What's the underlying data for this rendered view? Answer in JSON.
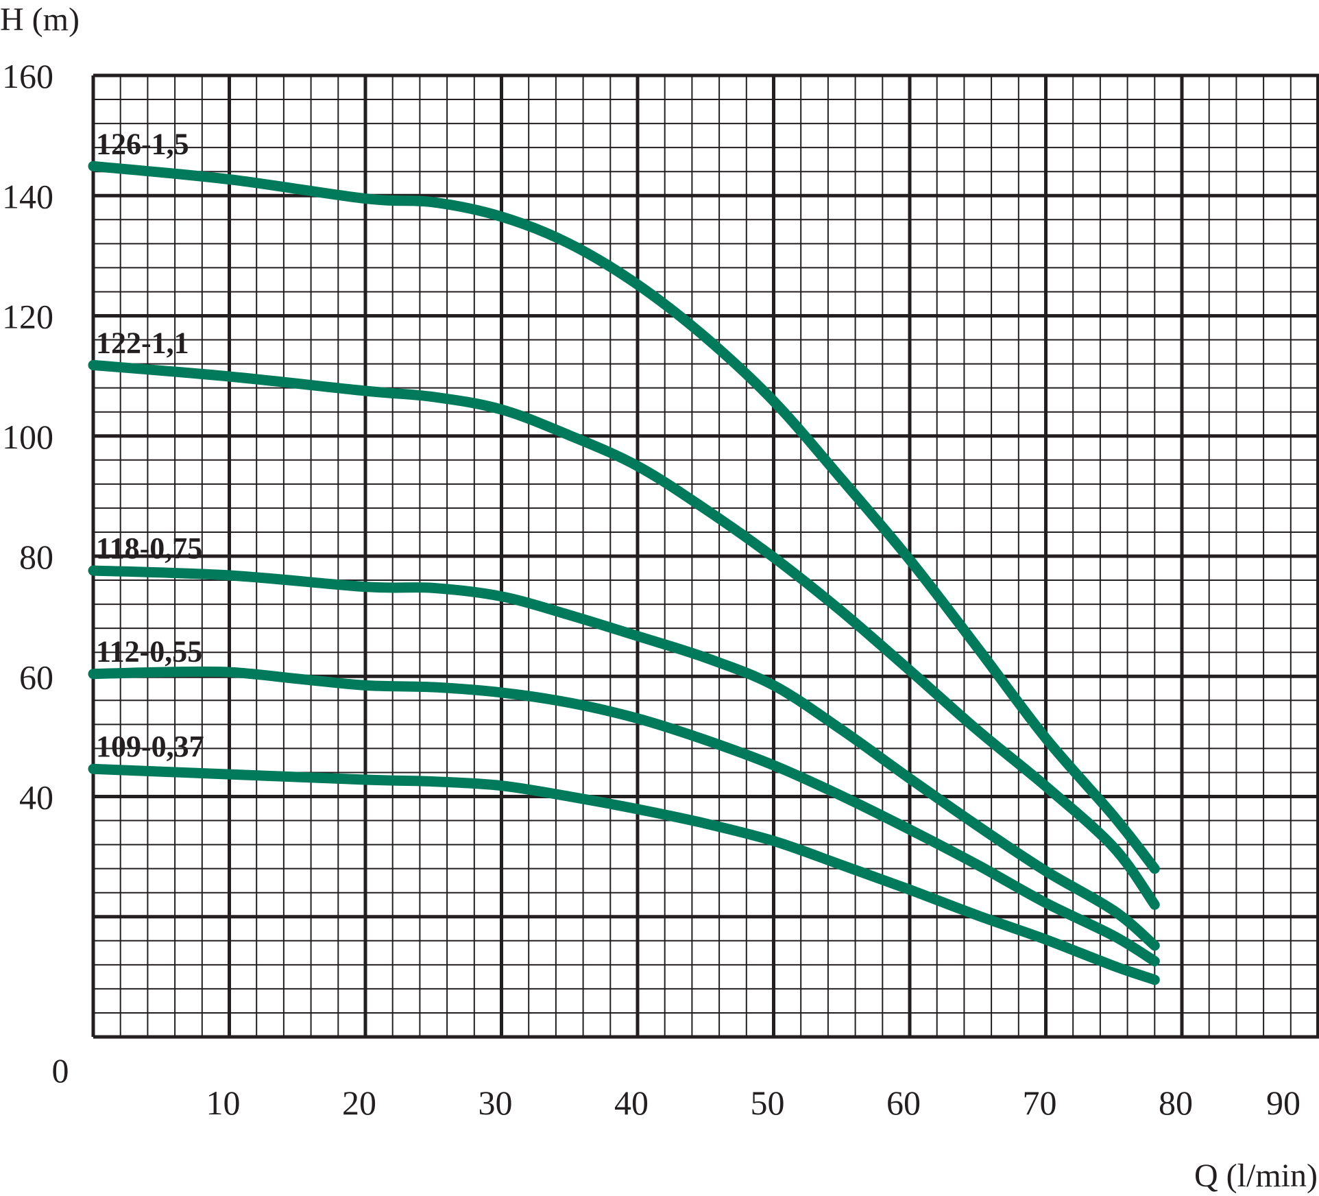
{
  "chart_data": {
    "type": "line",
    "title": "",
    "xlabel": "Q (l/min)",
    "ylabel": "H (m)",
    "xlim": [
      0,
      90
    ],
    "ylim": [
      0,
      160
    ],
    "x_ticks": [
      {
        "value": 10,
        "label": "10"
      },
      {
        "value": 20,
        "label": "20"
      },
      {
        "value": 30,
        "label": "30"
      },
      {
        "value": 40,
        "label": "40"
      },
      {
        "value": 50,
        "label": "50"
      },
      {
        "value": 60,
        "label": "60"
      },
      {
        "value": 70,
        "label": "70"
      },
      {
        "value": 80,
        "label": "80"
      },
      {
        "value": 90,
        "label": "90"
      }
    ],
    "y_ticks": [
      {
        "value": 40,
        "label": "40"
      },
      {
        "value": 60,
        "label": "60"
      },
      {
        "value": 80,
        "label": "80"
      },
      {
        "value": 100,
        "label": "100"
      },
      {
        "value": 120,
        "label": "120"
      },
      {
        "value": 140,
        "label": "140"
      },
      {
        "value": 160,
        "label": "160"
      }
    ],
    "origin_label": "0",
    "grid": true,
    "legend": "inline labels at left",
    "line_color": "#007a5a",
    "series": [
      {
        "name": "126-1,5",
        "points": [
          [
            0,
            144.9
          ],
          [
            10,
            142.7
          ],
          [
            20,
            139.5
          ],
          [
            25,
            138.9
          ],
          [
            30,
            136.5
          ],
          [
            35,
            132
          ],
          [
            40,
            125.2
          ],
          [
            45,
            116.4
          ],
          [
            50,
            105.8
          ],
          [
            55,
            92.8
          ],
          [
            60,
            79.4
          ],
          [
            65,
            64.7
          ],
          [
            70,
            49.7
          ],
          [
            75,
            36.7
          ],
          [
            78,
            28
          ]
        ]
      },
      {
        "name": "122-1,1",
        "points": [
          [
            0,
            111.8
          ],
          [
            10,
            109.9
          ],
          [
            20,
            107.5
          ],
          [
            25,
            106.5
          ],
          [
            30,
            104.4
          ],
          [
            35,
            100.1
          ],
          [
            40,
            95
          ],
          [
            45,
            87.8
          ],
          [
            50,
            79.8
          ],
          [
            55,
            70.8
          ],
          [
            60,
            61
          ],
          [
            65,
            51
          ],
          [
            70,
            41.7
          ],
          [
            75,
            31.5
          ],
          [
            78,
            22
          ]
        ]
      },
      {
        "name": "118-0,75",
        "points": [
          [
            0,
            77.6
          ],
          [
            10,
            76.8
          ],
          [
            20,
            74.9
          ],
          [
            25,
            74.7
          ],
          [
            30,
            73.3
          ],
          [
            35,
            70.2
          ],
          [
            40,
            66.7
          ],
          [
            45,
            63.1
          ],
          [
            50,
            58.5
          ],
          [
            55,
            51.1
          ],
          [
            60,
            43
          ],
          [
            65,
            35.1
          ],
          [
            70,
            27.6
          ],
          [
            75,
            21
          ],
          [
            78,
            15.2
          ]
        ]
      },
      {
        "name": "112-0,55",
        "points": [
          [
            0,
            60.4
          ],
          [
            5,
            60.7
          ],
          [
            10,
            60.7
          ],
          [
            15,
            59.6
          ],
          [
            20,
            58.5
          ],
          [
            25,
            58.2
          ],
          [
            30,
            57.3
          ],
          [
            35,
            55.6
          ],
          [
            40,
            53
          ],
          [
            45,
            49.4
          ],
          [
            50,
            45.2
          ],
          [
            55,
            40.1
          ],
          [
            60,
            34.5
          ],
          [
            65,
            28.6
          ],
          [
            70,
            22.3
          ],
          [
            75,
            16.8
          ],
          [
            78,
            12.6
          ]
        ]
      },
      {
        "name": "109-0,37",
        "points": [
          [
            0,
            44.6
          ],
          [
            10,
            43.7
          ],
          [
            20,
            42.8
          ],
          [
            25,
            42.5
          ],
          [
            30,
            41.8
          ],
          [
            35,
            40
          ],
          [
            40,
            37.9
          ],
          [
            45,
            35.5
          ],
          [
            50,
            32.6
          ],
          [
            55,
            28.6
          ],
          [
            60,
            24.5
          ],
          [
            65,
            20.2
          ],
          [
            70,
            16.2
          ],
          [
            75,
            11.8
          ],
          [
            78,
            9.5
          ]
        ]
      }
    ]
  }
}
